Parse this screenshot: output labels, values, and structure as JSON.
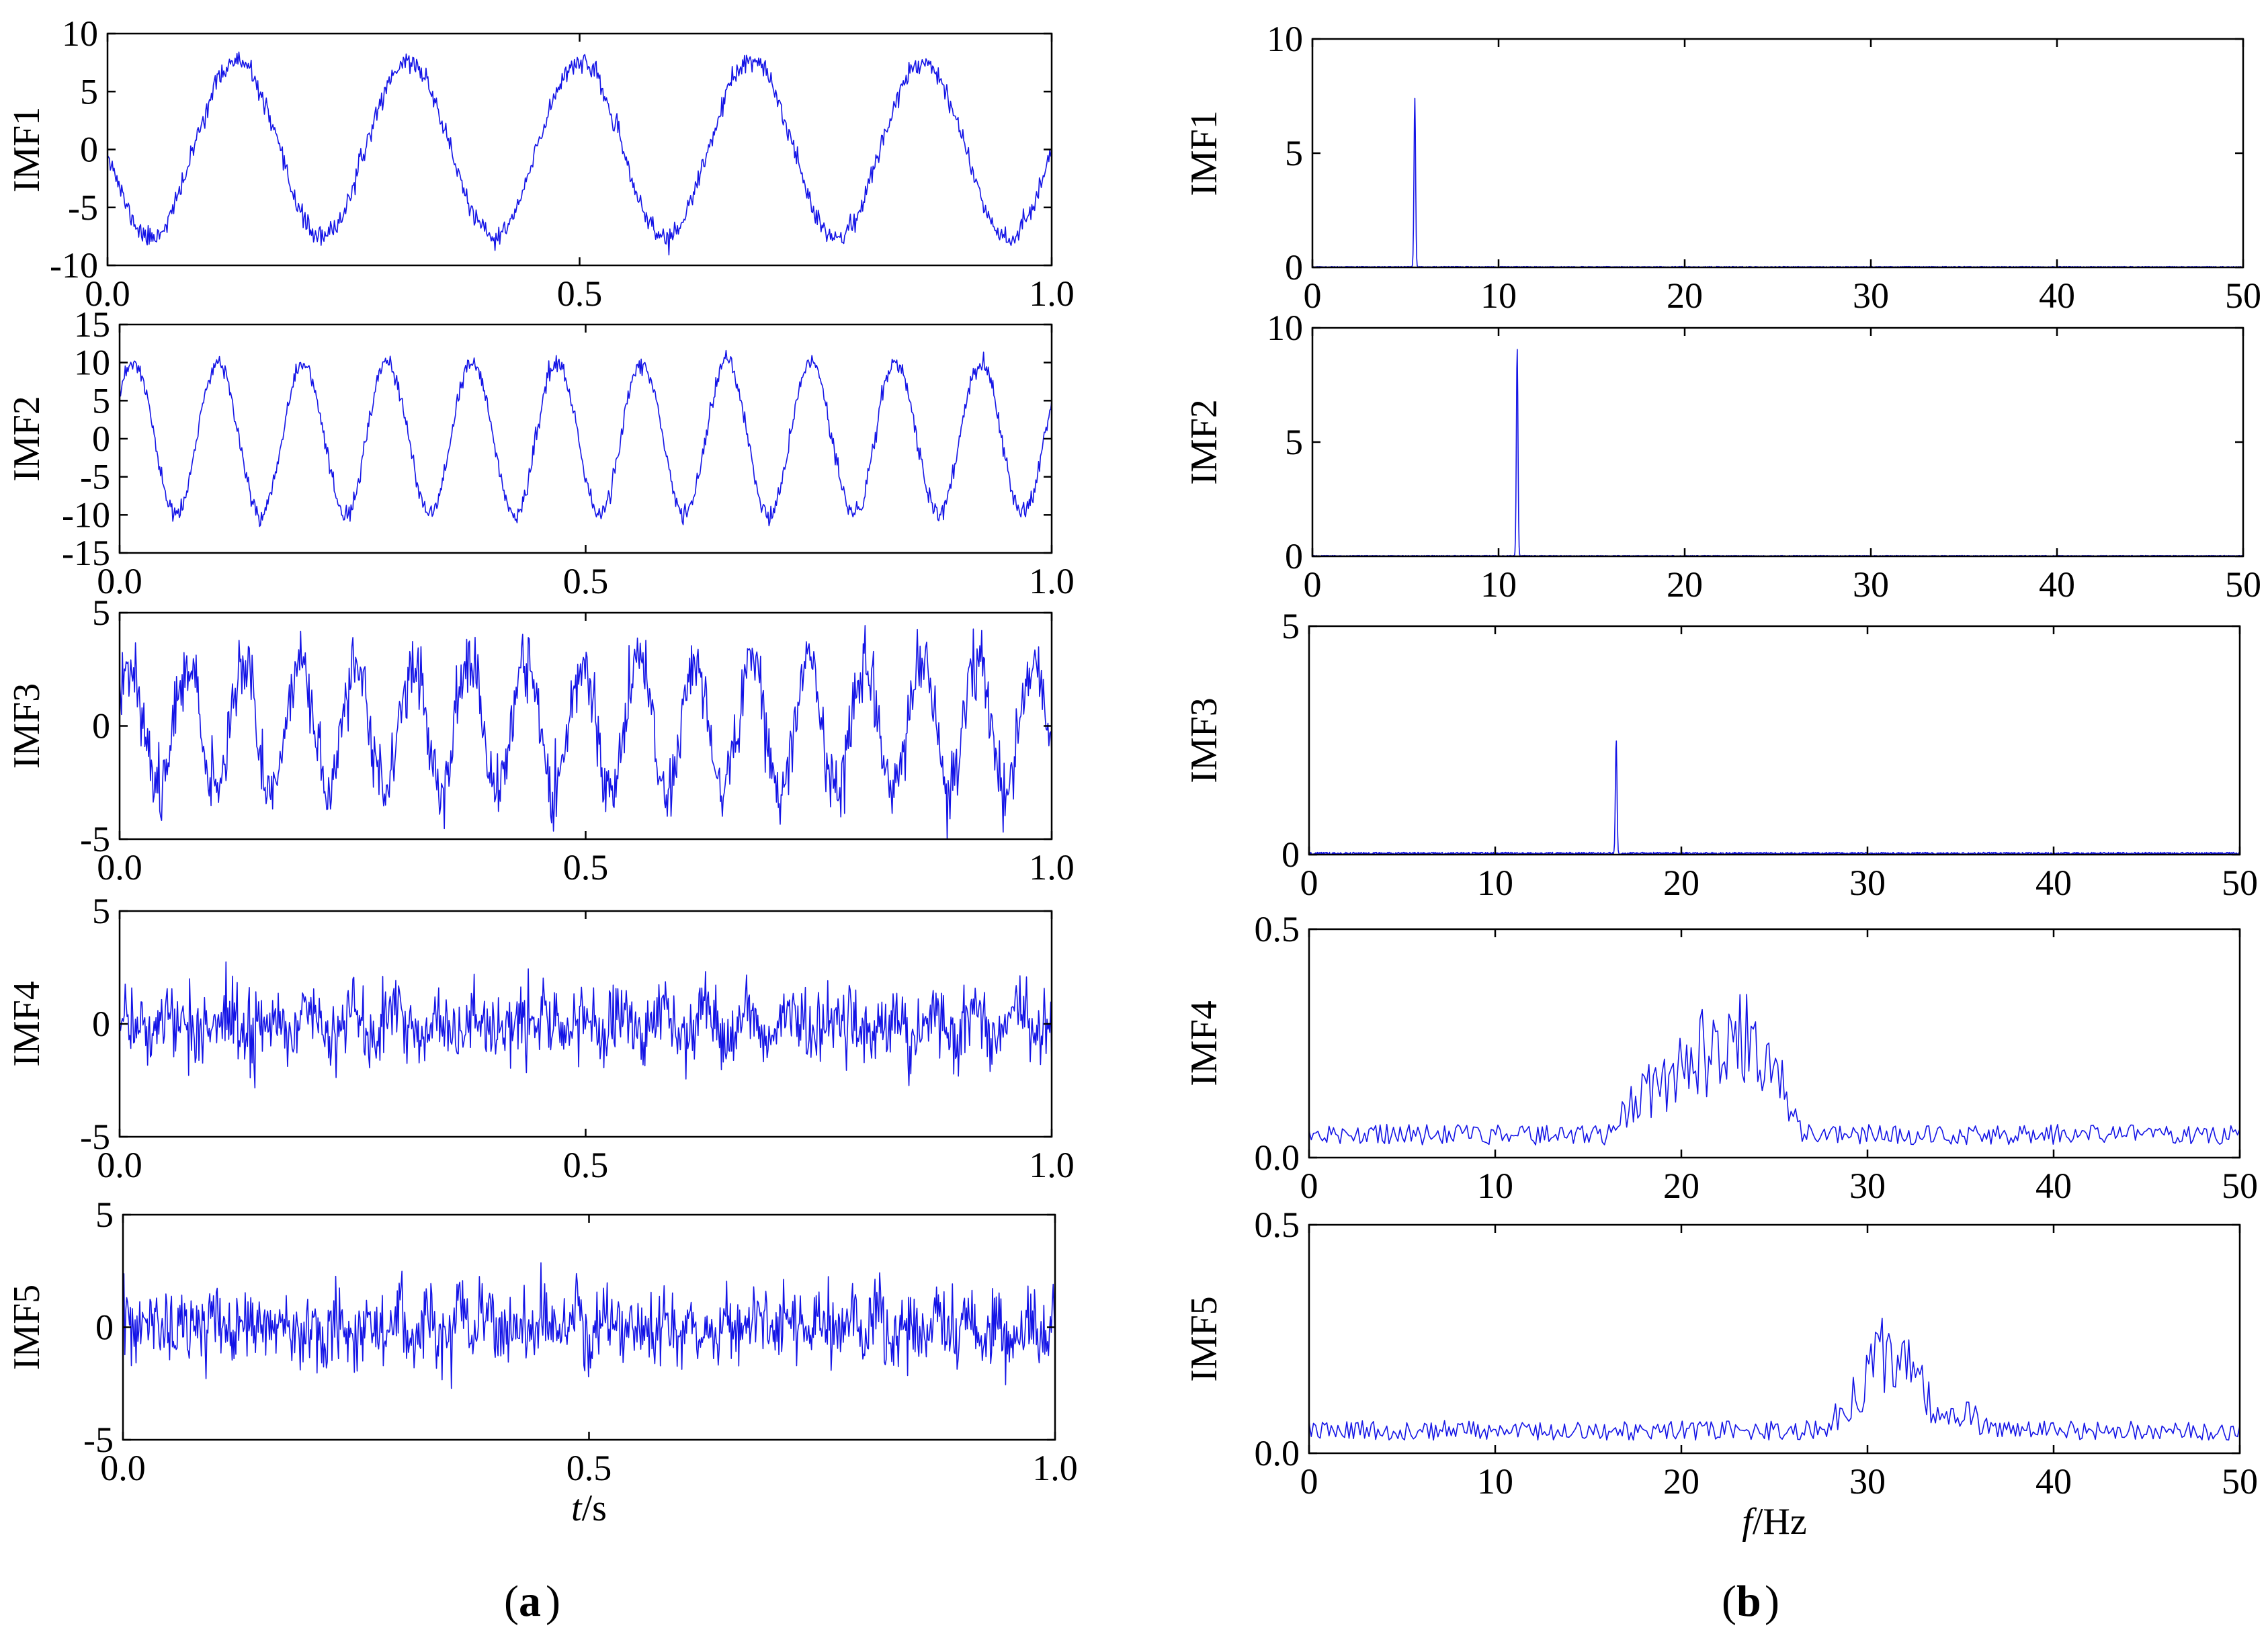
{
  "figure": {
    "panel_a_label": "a",
    "panel_b_label": "b",
    "line_color": "#1414e6",
    "axis_color": "#000000"
  },
  "chart_data": [
    {
      "type": "line",
      "panel": "a",
      "ylabel": "IMF1",
      "xlabel": "",
      "xlim": [
        0,
        1
      ],
      "ylim": [
        -10,
        10
      ],
      "xticks": [
        0,
        0.5,
        1
      ],
      "xtick_labels": [
        "0.0",
        "0.5",
        "1.0"
      ],
      "yticks": [
        -10,
        -5,
        0,
        5,
        10
      ],
      "ytick_labels": [
        "-10",
        "-5",
        "0",
        "5",
        "10"
      ],
      "signal": {
        "components": [
          {
            "freq": 5.5,
            "amp": 7.6,
            "phase": 3.14159
          }
        ],
        "noise": 0.45,
        "n": 1000,
        "seed": 11
      }
    },
    {
      "type": "line",
      "panel": "a",
      "ylabel": "IMF2",
      "xlabel": "",
      "xlim": [
        0,
        1
      ],
      "ylim": [
        -15,
        15
      ],
      "xticks": [
        0,
        0.5,
        1
      ],
      "xtick_labels": [
        "0.0",
        "0.5",
        "1.0"
      ],
      "yticks": [
        -15,
        -10,
        -5,
        0,
        5,
        10,
        15
      ],
      "ytick_labels": [
        "-15",
        "-10",
        "-5",
        "0",
        "5",
        "10",
        "15"
      ],
      "signal": {
        "components": [
          {
            "freq": 11,
            "amp": 10,
            "phase": 0.55
          }
        ],
        "noise": 0.6,
        "n": 1000,
        "seed": 23
      }
    },
    {
      "type": "line",
      "panel": "a",
      "ylabel": "IMF3",
      "xlabel": "",
      "xlim": [
        0,
        1
      ],
      "ylim": [
        -5,
        5
      ],
      "xticks": [
        0,
        0.5,
        1
      ],
      "xtick_labels": [
        "0.0",
        "0.5",
        "1.0"
      ],
      "yticks": [
        -5,
        0,
        5
      ],
      "ytick_labels": [
        "-5",
        "0",
        "5"
      ],
      "signal": {
        "components": [
          {
            "freq": 16.5,
            "amp": 2.9,
            "phase": 0.4
          }
        ],
        "noise": 0.75,
        "n": 1000,
        "seed": 37
      }
    },
    {
      "type": "line",
      "panel": "a",
      "ylabel": "IMF4",
      "xlabel": "",
      "xlim": [
        0,
        1
      ],
      "ylim": [
        -5,
        5
      ],
      "xticks": [
        0,
        0.5,
        1
      ],
      "xtick_labels": [
        "0.0",
        "0.5",
        "1.0"
      ],
      "yticks": [
        -5,
        0,
        5
      ],
      "ytick_labels": [
        "-5",
        "0",
        "5"
      ],
      "signal": {
        "components": [
          {
            "freq": 21,
            "amp": 0.45,
            "phase": 0.1
          },
          {
            "freq": 24,
            "amp": 0.35,
            "phase": 1.3
          }
        ],
        "noise": 0.8,
        "n": 1000,
        "seed": 41
      }
    },
    {
      "type": "line",
      "panel": "a",
      "ylabel": "IMF5",
      "xlabel": "t/s",
      "xlim": [
        0,
        1
      ],
      "ylim": [
        -5,
        5
      ],
      "xticks": [
        0,
        0.5,
        1
      ],
      "xtick_labels": [
        "0.0",
        "0.5",
        "1.0"
      ],
      "yticks": [
        -5,
        0,
        5
      ],
      "ytick_labels": [
        "-5",
        "0",
        "5"
      ],
      "signal": {
        "components": [
          {
            "freq": 31,
            "amp": 0.4,
            "phase": 0.7
          },
          {
            "freq": 33,
            "amp": 0.3,
            "phase": 2.1
          }
        ],
        "noise": 0.8,
        "n": 1000,
        "seed": 53
      }
    },
    {
      "type": "line",
      "panel": "b",
      "ylabel": "IMF1",
      "xlabel": "",
      "xlim": [
        0,
        50
      ],
      "ylim": [
        0,
        10
      ],
      "xticks": [
        0,
        10,
        20,
        30,
        40,
        50
      ],
      "xtick_labels": [
        "0",
        "10",
        "20",
        "30",
        "40",
        "50"
      ],
      "yticks": [
        0,
        5,
        10
      ],
      "ytick_labels": [
        "0",
        "5",
        "10"
      ],
      "spectrum": {
        "peaks": [
          {
            "f": 5.5,
            "amp": 7.4,
            "width": 0.06
          }
        ],
        "floor": 0.04,
        "n": 2000,
        "seed": 71
      }
    },
    {
      "type": "line",
      "panel": "b",
      "ylabel": "IMF2",
      "xlabel": "",
      "xlim": [
        0,
        50
      ],
      "ylim": [
        0,
        10
      ],
      "xticks": [
        0,
        10,
        20,
        30,
        40,
        50
      ],
      "xtick_labels": [
        "0",
        "10",
        "20",
        "30",
        "40",
        "50"
      ],
      "yticks": [
        0,
        5,
        10
      ],
      "ytick_labels": [
        "0",
        "5",
        "10"
      ],
      "spectrum": {
        "peaks": [
          {
            "f": 11,
            "amp": 9.1,
            "width": 0.06
          }
        ],
        "floor": 0.04,
        "n": 2000,
        "seed": 73
      }
    },
    {
      "type": "line",
      "panel": "b",
      "ylabel": "IMF3",
      "xlabel": "",
      "xlim": [
        0,
        50
      ],
      "ylim": [
        0,
        5
      ],
      "xticks": [
        0,
        10,
        20,
        30,
        40,
        50
      ],
      "xtick_labels": [
        "0",
        "10",
        "20",
        "30",
        "40",
        "50"
      ],
      "yticks": [
        0,
        5
      ],
      "ytick_labels": [
        "0",
        "5"
      ],
      "spectrum": {
        "peaks": [
          {
            "f": 16.5,
            "amp": 2.5,
            "width": 0.06
          }
        ],
        "floor": 0.05,
        "n": 2000,
        "seed": 79
      }
    },
    {
      "type": "line",
      "panel": "b",
      "ylabel": "IMF4",
      "xlabel": "",
      "xlim": [
        0,
        50
      ],
      "ylim": [
        0,
        0.5
      ],
      "xticks": [
        0,
        10,
        20,
        30,
        40,
        50
      ],
      "xtick_labels": [
        "0",
        "10",
        "20",
        "30",
        "40",
        "50"
      ],
      "yticks": [
        0,
        0.5
      ],
      "ytick_labels": [
        "0.0",
        "0.5"
      ],
      "band": {
        "points": [
          [
            0,
            0.05
          ],
          [
            16,
            0.05
          ],
          [
            18,
            0.14
          ],
          [
            20,
            0.2
          ],
          [
            22,
            0.26
          ],
          [
            23.5,
            0.25
          ],
          [
            25.5,
            0.16
          ],
          [
            26.5,
            0.05
          ],
          [
            50,
            0.05
          ]
        ],
        "noise": 0.9,
        "n": 420,
        "seed": 83
      }
    },
    {
      "type": "line",
      "panel": "b",
      "ylabel": "IMF5",
      "xlabel": "f/Hz",
      "xlim": [
        0,
        50
      ],
      "ylim": [
        0,
        0.5
      ],
      "xticks": [
        0,
        10,
        20,
        30,
        40,
        50
      ],
      "xtick_labels": [
        "0",
        "10",
        "20",
        "30",
        "40",
        "50"
      ],
      "yticks": [
        0,
        0.5
      ],
      "ytick_labels": [
        "0.0",
        "0.5"
      ],
      "band": {
        "points": [
          [
            0,
            0.05
          ],
          [
            27.5,
            0.05
          ],
          [
            29,
            0.1
          ],
          [
            30.5,
            0.22
          ],
          [
            32,
            0.2
          ],
          [
            33.5,
            0.1
          ],
          [
            35.5,
            0.08
          ],
          [
            37,
            0.05
          ],
          [
            50,
            0.05
          ]
        ],
        "noise": 0.85,
        "n": 420,
        "seed": 89
      }
    }
  ]
}
